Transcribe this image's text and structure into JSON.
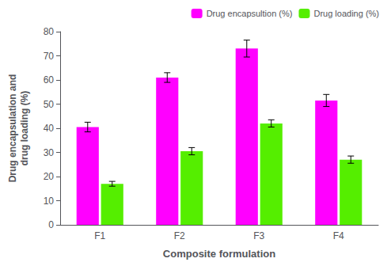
{
  "chart_data": {
    "type": "bar",
    "xlabel": "Composite formulation",
    "ylabel": "Drug encapsulation and\ndrug loading (%)",
    "categories": [
      "F1",
      "F2",
      "F3",
      "F4"
    ],
    "series": [
      {
        "name": "Drug encapsultion (%)",
        "color": "#FF00FF",
        "values": [
          40.5,
          61.0,
          73.0,
          51.5
        ],
        "errors": [
          2.0,
          2.0,
          3.5,
          2.5
        ]
      },
      {
        "name": "Drug loading (%)",
        "color": "#55EE00",
        "values": [
          17.0,
          30.5,
          42.0,
          27.0
        ],
        "errors": [
          1.0,
          1.5,
          1.5,
          1.5
        ]
      }
    ],
    "ylim": [
      0,
      80
    ],
    "yticks": [
      0,
      10,
      20,
      30,
      40,
      50,
      60,
      70,
      80
    ],
    "grid": false,
    "legend": "upper right"
  }
}
